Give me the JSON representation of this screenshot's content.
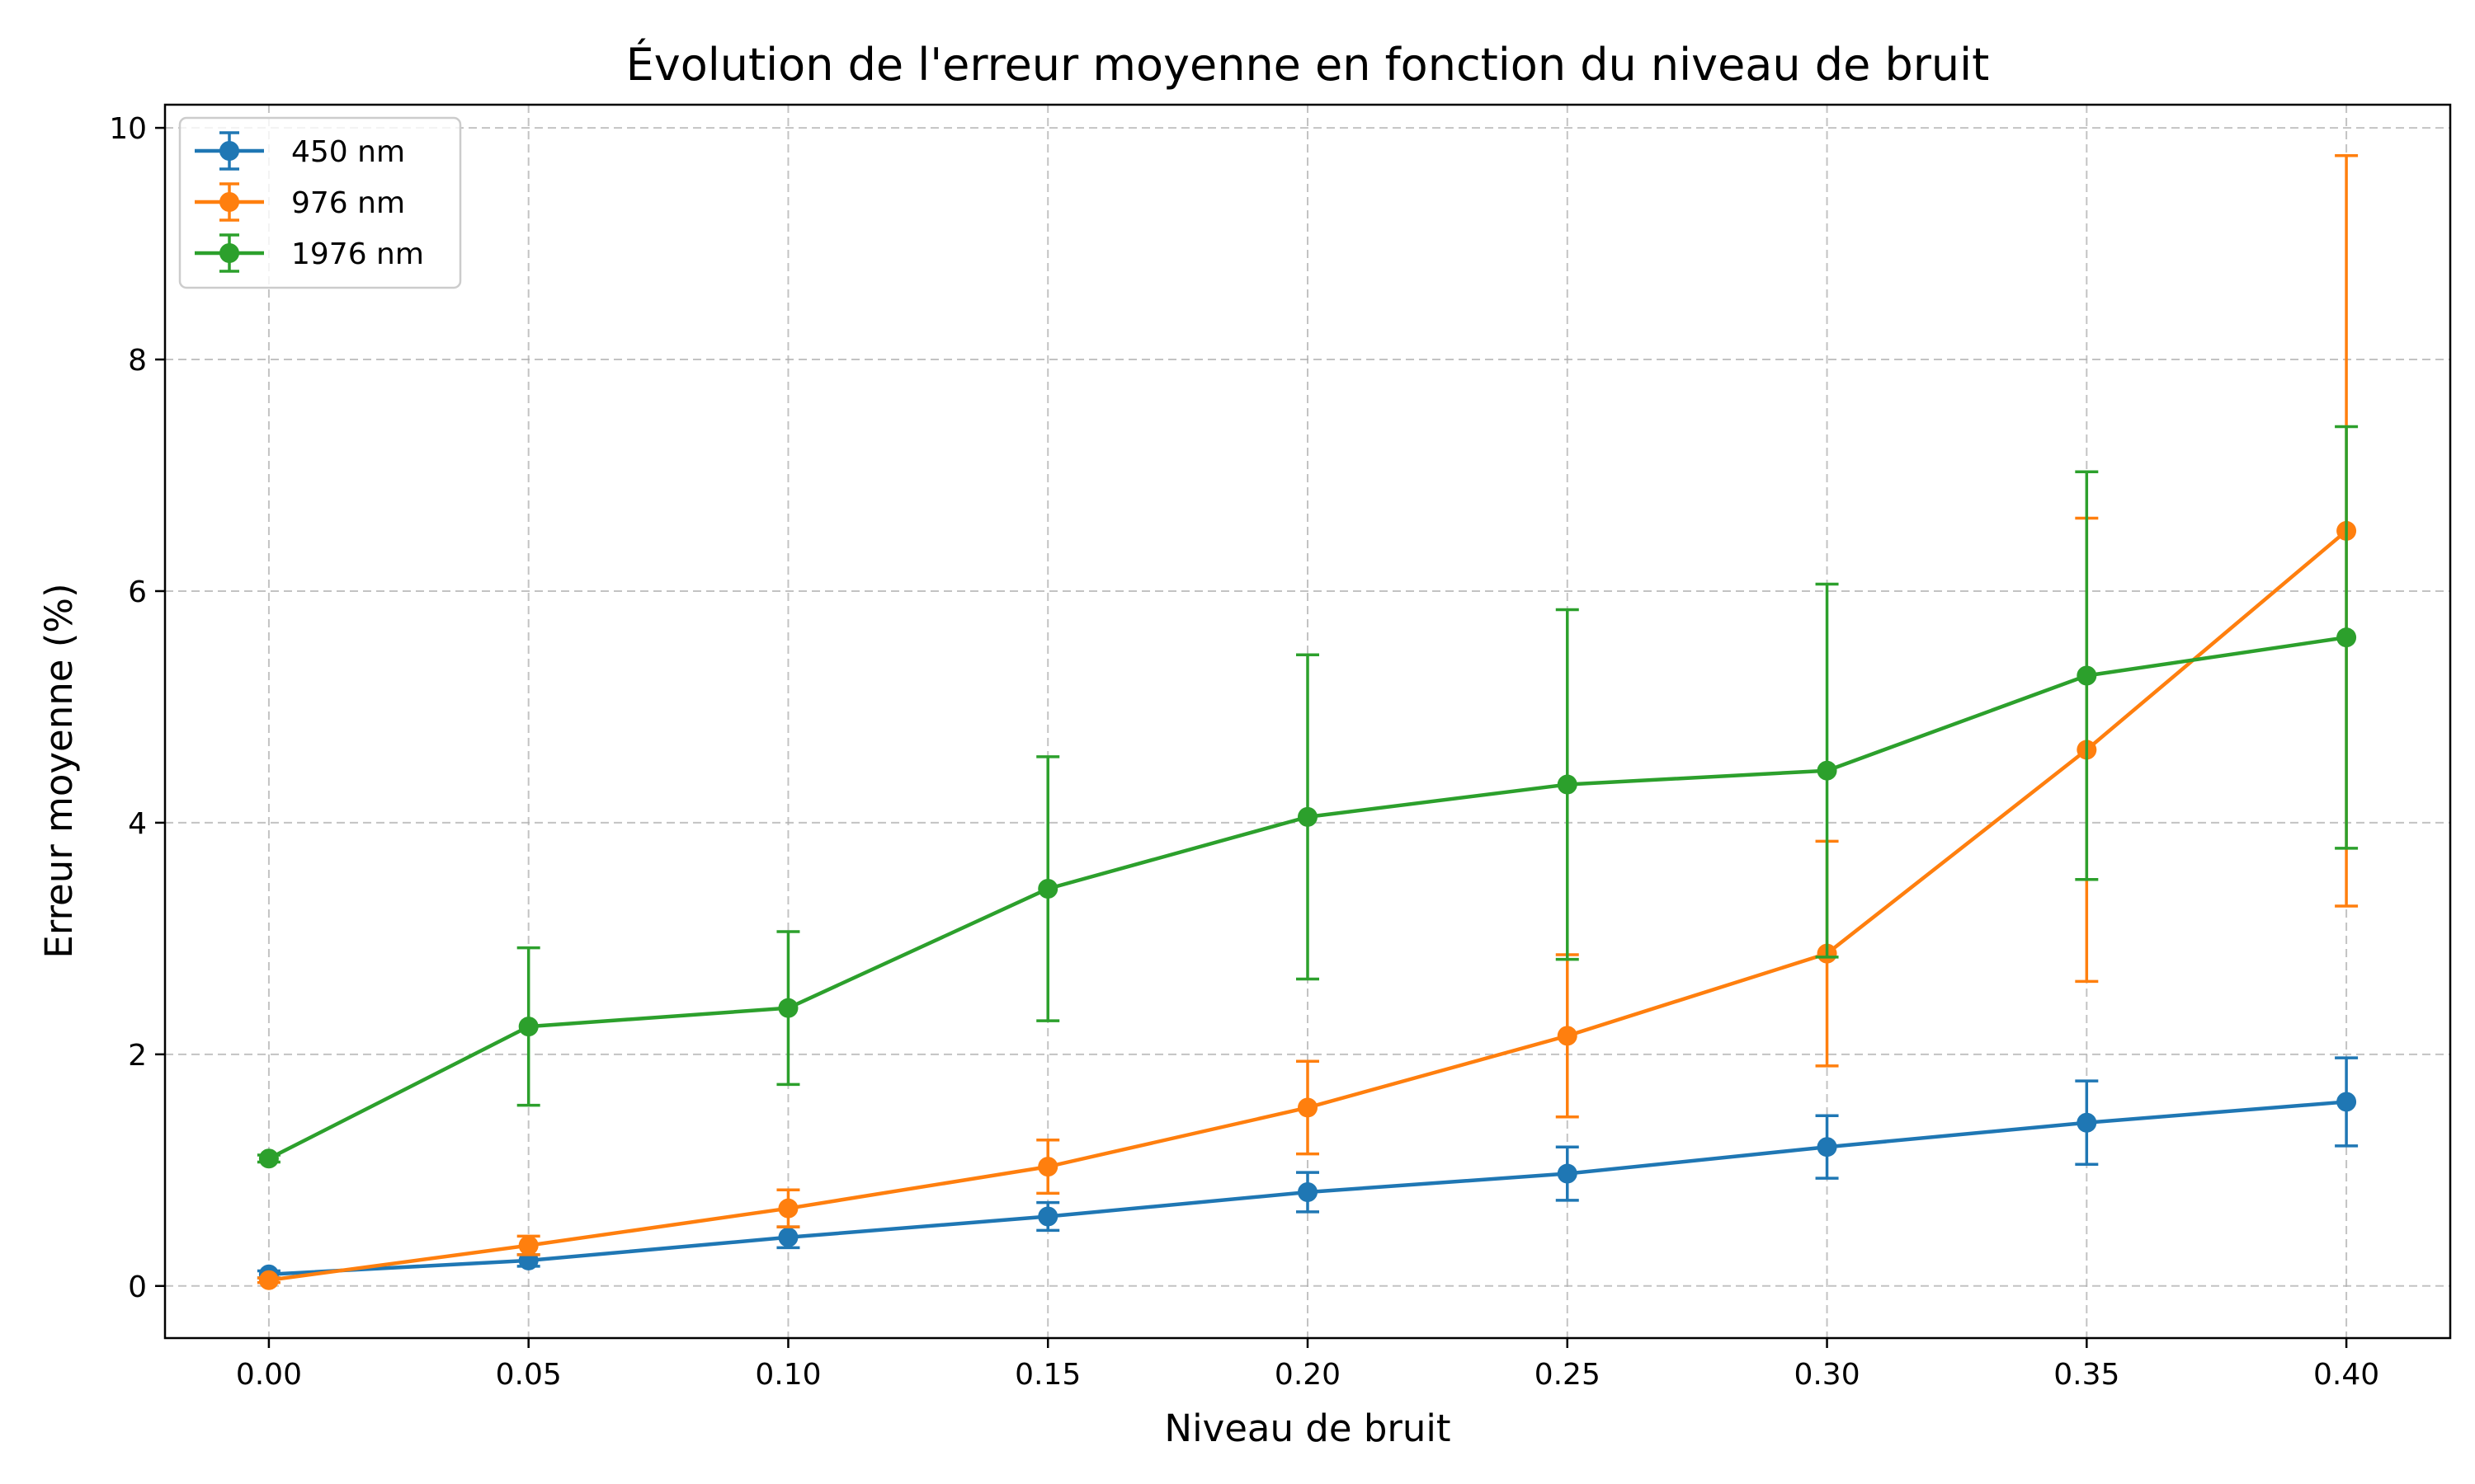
{
  "chart_data": {
    "type": "line",
    "title": "Évolution de l'erreur moyenne en fonction du niveau de bruit",
    "xlabel": "Niveau de bruit",
    "ylabel": "Erreur moyenne (%)",
    "xlim": [
      -0.02,
      0.42
    ],
    "ylim": [
      -0.45,
      10.2
    ],
    "x": [
      0.0,
      0.05,
      0.1,
      0.15,
      0.2,
      0.25,
      0.3,
      0.35,
      0.4
    ],
    "xticks": [
      0.0,
      0.05,
      0.1,
      0.15,
      0.2,
      0.25,
      0.3,
      0.35,
      0.4
    ],
    "xtick_labels": [
      "0.00",
      "0.05",
      "0.10",
      "0.15",
      "0.20",
      "0.25",
      "0.30",
      "0.35",
      "0.40"
    ],
    "yticks": [
      0,
      2,
      4,
      6,
      8,
      10
    ],
    "ytick_labels": [
      "0",
      "2",
      "4",
      "6",
      "8",
      "10"
    ],
    "grid": true,
    "legend_position": "top-left",
    "series": [
      {
        "name": "450 nm",
        "color": "#1f77b4",
        "values": [
          0.1,
          0.22,
          0.42,
          0.6,
          0.81,
          0.97,
          1.2,
          1.41,
          1.59
        ],
        "error": [
          0.03,
          0.05,
          0.09,
          0.12,
          0.17,
          0.23,
          0.27,
          0.36,
          0.38
        ]
      },
      {
        "name": "976 nm",
        "color": "#ff7f0e",
        "values": [
          0.05,
          0.35,
          0.67,
          1.03,
          1.54,
          2.16,
          2.87,
          4.63,
          6.52
        ],
        "error": [
          0.02,
          0.08,
          0.16,
          0.23,
          0.4,
          0.7,
          0.97,
          2.0,
          3.24
        ]
      },
      {
        "name": "1976 nm",
        "color": "#2ca02c",
        "values": [
          1.1,
          2.24,
          2.4,
          3.43,
          4.05,
          4.33,
          4.45,
          5.27,
          5.6
        ],
        "error": [
          0.03,
          0.68,
          0.66,
          1.14,
          1.4,
          1.51,
          1.61,
          1.76,
          1.82
        ]
      }
    ]
  }
}
